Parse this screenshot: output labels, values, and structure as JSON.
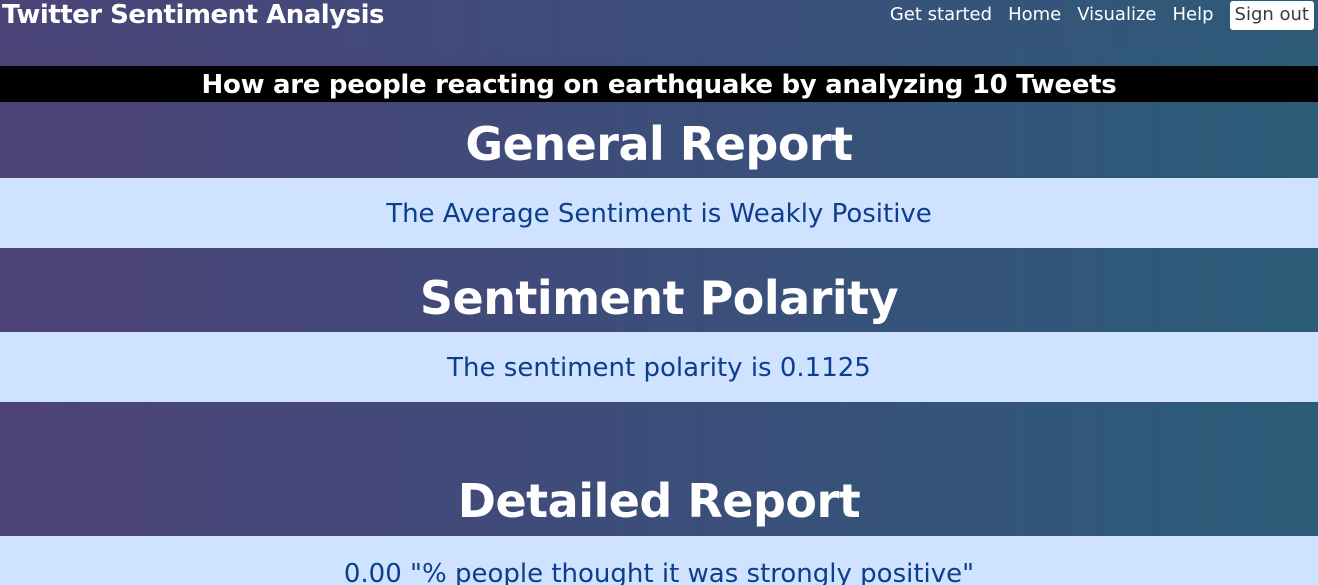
{
  "nav": {
    "brand": "Twitter Sentiment Analysis",
    "links": [
      "Get started",
      "Home",
      "Visualize",
      "Help"
    ],
    "signout": "Sign out"
  },
  "headline": "How are people reacting on earthquake by analyzing 10 Tweets",
  "general": {
    "title": "General Report",
    "result": "The Average Sentiment is Weakly Positive"
  },
  "polarity": {
    "title": "Sentiment Polarity",
    "result": "The sentiment polarity is 0.1125"
  },
  "detailed": {
    "title": "Detailed Report",
    "result": "0.00 \"% people thought it was strongly positive\""
  },
  "colors": {
    "band_background": "#cfe2ff",
    "band_text": "#0c3e8c",
    "headline_background": "#000000"
  }
}
